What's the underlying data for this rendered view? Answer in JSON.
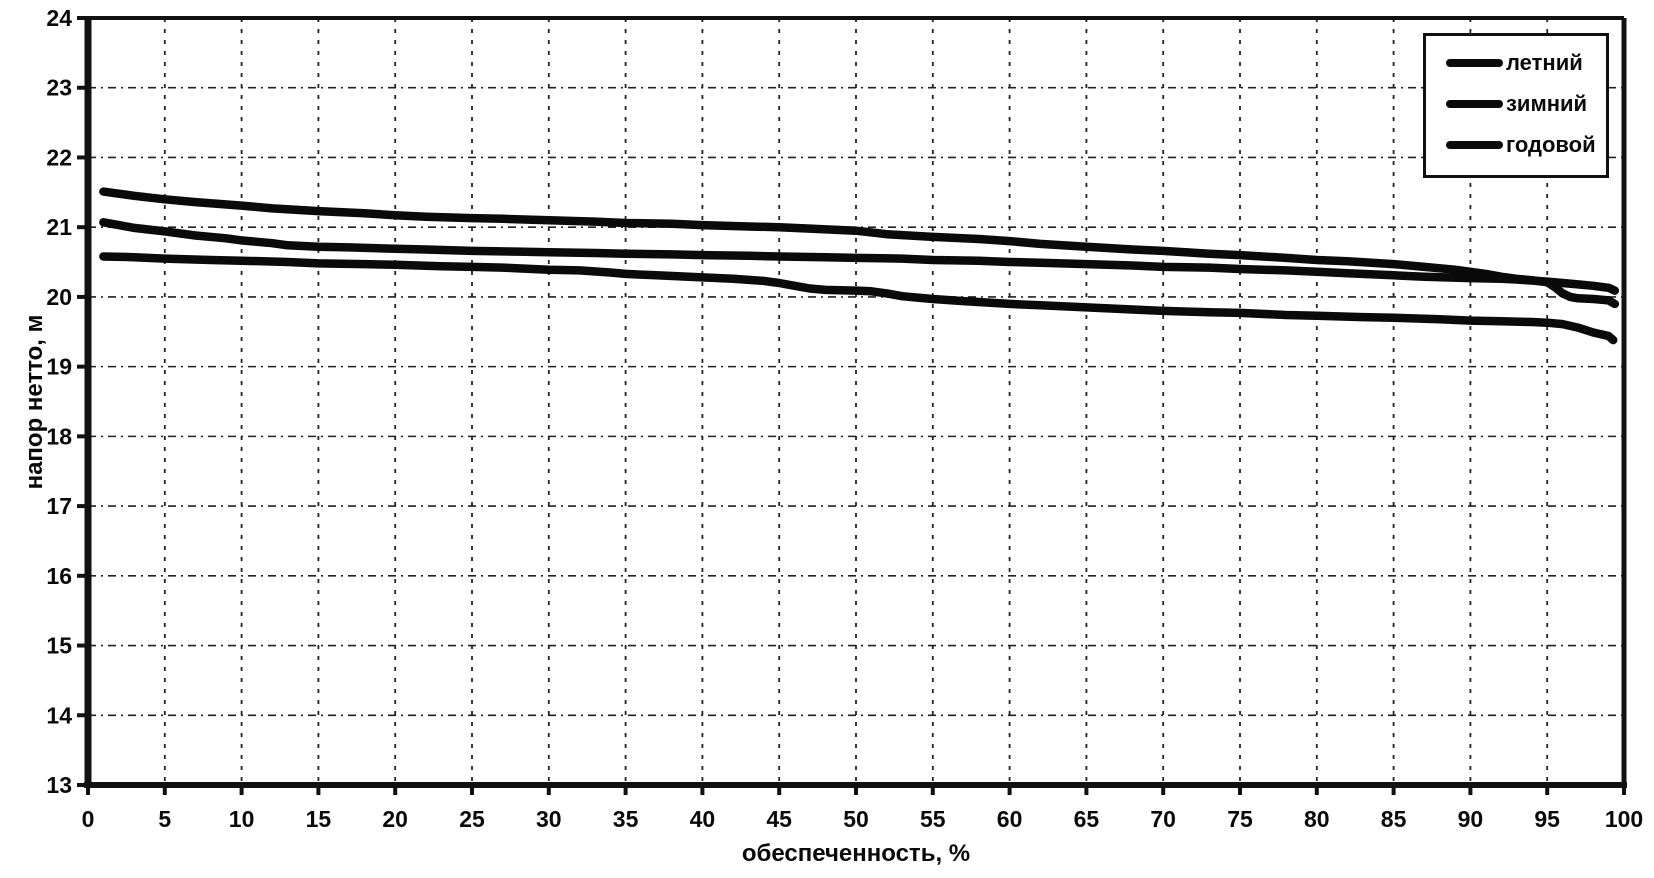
{
  "chart_data": {
    "type": "line",
    "title": "",
    "xlabel": "обеспеченность, %",
    "ylabel": "напор нетто, м",
    "xlim": [
      0,
      100
    ],
    "ylim": [
      13,
      24
    ],
    "xticks": [
      0,
      5,
      10,
      15,
      20,
      25,
      30,
      35,
      40,
      45,
      50,
      55,
      60,
      65,
      70,
      75,
      80,
      85,
      90,
      95,
      100
    ],
    "yticks": [
      13,
      14,
      15,
      16,
      17,
      18,
      19,
      20,
      21,
      22,
      23,
      24
    ],
    "grid": "dashed",
    "legend_position": "top-right",
    "colors": {
      "line": "#0a0a0a",
      "grid": "#222222",
      "axis": "#111111"
    },
    "series": [
      {
        "name": "летний",
        "points": [
          [
            1,
            21.51
          ],
          [
            2,
            21.48
          ],
          [
            3,
            21.45
          ],
          [
            5,
            21.4
          ],
          [
            7,
            21.36
          ],
          [
            10,
            21.31
          ],
          [
            12,
            21.27
          ],
          [
            15,
            21.23
          ],
          [
            18,
            21.2
          ],
          [
            20,
            21.17
          ],
          [
            22,
            21.15
          ],
          [
            25,
            21.13
          ],
          [
            27,
            21.12
          ],
          [
            30,
            21.1
          ],
          [
            33,
            21.08
          ],
          [
            35,
            21.06
          ],
          [
            38,
            21.05
          ],
          [
            40,
            21.03
          ],
          [
            43,
            21.01
          ],
          [
            45,
            21.0
          ],
          [
            47,
            20.98
          ],
          [
            50,
            20.95
          ],
          [
            52,
            20.9
          ],
          [
            55,
            20.86
          ],
          [
            58,
            20.83
          ],
          [
            60,
            20.8
          ],
          [
            62,
            20.76
          ],
          [
            65,
            20.72
          ],
          [
            68,
            20.68
          ],
          [
            70,
            20.66
          ],
          [
            73,
            20.62
          ],
          [
            75,
            20.6
          ],
          [
            78,
            20.56
          ],
          [
            80,
            20.53
          ],
          [
            82,
            20.51
          ],
          [
            85,
            20.47
          ],
          [
            87,
            20.43
          ],
          [
            89,
            20.39
          ],
          [
            90,
            20.36
          ],
          [
            91,
            20.33
          ],
          [
            92,
            20.29
          ],
          [
            93,
            20.26
          ],
          [
            94,
            20.24
          ],
          [
            95,
            20.21
          ],
          [
            95.5,
            20.14
          ],
          [
            96,
            20.05
          ],
          [
            96.5,
            20.0
          ],
          [
            97,
            19.98
          ],
          [
            98,
            19.97
          ],
          [
            99,
            19.95
          ],
          [
            99.4,
            19.9
          ]
        ]
      },
      {
        "name": "зимний",
        "points": [
          [
            1,
            21.07
          ],
          [
            2,
            21.03
          ],
          [
            3,
            20.99
          ],
          [
            5,
            20.94
          ],
          [
            7,
            20.88
          ],
          [
            9,
            20.84
          ],
          [
            10,
            20.81
          ],
          [
            11,
            20.79
          ],
          [
            12,
            20.77
          ],
          [
            13,
            20.74
          ],
          [
            14,
            20.73
          ],
          [
            15,
            20.72
          ],
          [
            17,
            20.71
          ],
          [
            20,
            20.69
          ],
          [
            22,
            20.68
          ],
          [
            25,
            20.66
          ],
          [
            28,
            20.65
          ],
          [
            30,
            20.64
          ],
          [
            33,
            20.63
          ],
          [
            35,
            20.62
          ],
          [
            38,
            20.61
          ],
          [
            40,
            20.6
          ],
          [
            43,
            20.59
          ],
          [
            45,
            20.58
          ],
          [
            48,
            20.57
          ],
          [
            50,
            20.56
          ],
          [
            53,
            20.55
          ],
          [
            55,
            20.53
          ],
          [
            58,
            20.52
          ],
          [
            60,
            20.5
          ],
          [
            62,
            20.49
          ],
          [
            65,
            20.47
          ],
          [
            68,
            20.45
          ],
          [
            70,
            20.43
          ],
          [
            73,
            20.42
          ],
          [
            75,
            20.4
          ],
          [
            78,
            20.38
          ],
          [
            80,
            20.36
          ],
          [
            82,
            20.34
          ],
          [
            85,
            20.31
          ],
          [
            87,
            20.29
          ],
          [
            90,
            20.27
          ],
          [
            92,
            20.26
          ],
          [
            93,
            20.25
          ],
          [
            95,
            20.22
          ],
          [
            96,
            20.2
          ],
          [
            97,
            20.18
          ],
          [
            98,
            20.16
          ],
          [
            99,
            20.13
          ],
          [
            99.4,
            20.09
          ]
        ]
      },
      {
        "name": "годовой",
        "points": [
          [
            1,
            20.58
          ],
          [
            3,
            20.57
          ],
          [
            5,
            20.55
          ],
          [
            8,
            20.53
          ],
          [
            10,
            20.52
          ],
          [
            13,
            20.5
          ],
          [
            15,
            20.48
          ],
          [
            18,
            20.47
          ],
          [
            20,
            20.46
          ],
          [
            23,
            20.44
          ],
          [
            25,
            20.43
          ],
          [
            27,
            20.42
          ],
          [
            30,
            20.39
          ],
          [
            32,
            20.38
          ],
          [
            34,
            20.35
          ],
          [
            35,
            20.33
          ],
          [
            37,
            20.31
          ],
          [
            40,
            20.28
          ],
          [
            42,
            20.26
          ],
          [
            44,
            20.23
          ],
          [
            45,
            20.2
          ],
          [
            46,
            20.16
          ],
          [
            47,
            20.12
          ],
          [
            48,
            20.1
          ],
          [
            50,
            20.09
          ],
          [
            51,
            20.08
          ],
          [
            52,
            20.05
          ],
          [
            53,
            20.01
          ],
          [
            54,
            19.99
          ],
          [
            55,
            19.97
          ],
          [
            57,
            19.94
          ],
          [
            60,
            19.9
          ],
          [
            62,
            19.88
          ],
          [
            65,
            19.85
          ],
          [
            68,
            19.82
          ],
          [
            70,
            19.8
          ],
          [
            73,
            19.78
          ],
          [
            75,
            19.77
          ],
          [
            78,
            19.74
          ],
          [
            80,
            19.73
          ],
          [
            83,
            19.71
          ],
          [
            85,
            19.7
          ],
          [
            88,
            19.68
          ],
          [
            90,
            19.66
          ],
          [
            92,
            19.65
          ],
          [
            94,
            19.64
          ],
          [
            95,
            19.63
          ],
          [
            96,
            19.61
          ],
          [
            97,
            19.56
          ],
          [
            98,
            19.49
          ],
          [
            99,
            19.44
          ],
          [
            99.3,
            19.38
          ]
        ]
      }
    ]
  }
}
